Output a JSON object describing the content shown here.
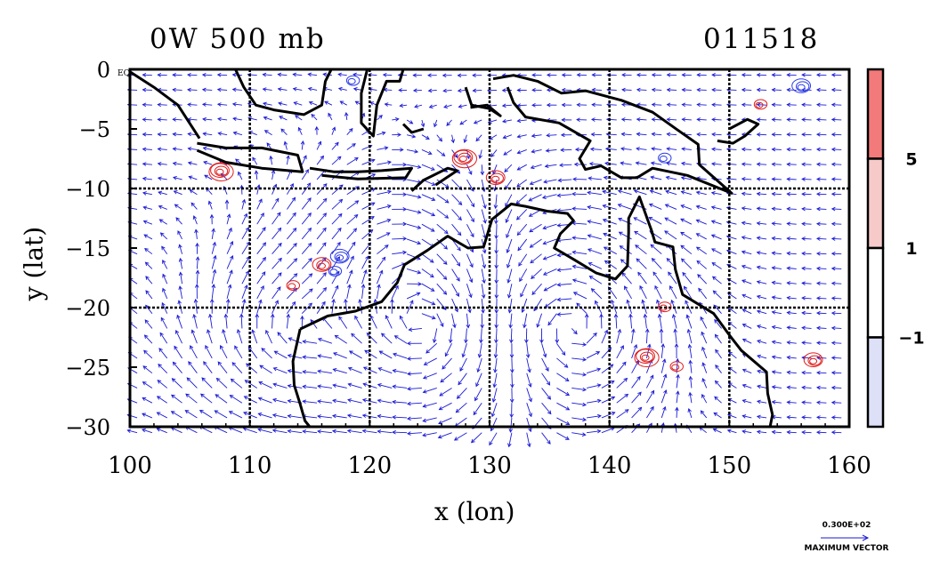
{
  "title_left": "0W 500 mb",
  "title_right": "011518",
  "eq_mark": "EQ",
  "x_axis": {
    "label": "x (lon)",
    "range": [
      100,
      160
    ],
    "ticks": [
      100,
      110,
      120,
      130,
      140,
      150,
      160
    ],
    "tick_labels": [
      "100",
      "110",
      "120",
      "130",
      "140",
      "150",
      "160"
    ]
  },
  "y_axis": {
    "label": "y (lat)",
    "range": [
      -30,
      0
    ],
    "ticks": [
      0,
      -5,
      -10,
      -15,
      -20,
      -25,
      -30
    ],
    "tick_labels": [
      "0",
      "−5",
      "−10",
      "−15",
      "−20",
      "−25",
      "−30"
    ]
  },
  "grid": {
    "on": true,
    "lon_lines": [
      110,
      120,
      130,
      140,
      150
    ],
    "lat_lines": [
      -10,
      -20
    ],
    "style": "dashed"
  },
  "colorbar": {
    "labels": [
      "5",
      "1",
      "−1"
    ],
    "label_values": [
      5,
      1,
      -1
    ],
    "bands": [
      {
        "from": 5,
        "to": 10,
        "color": "#f27a7a"
      },
      {
        "from": 1,
        "to": 5,
        "color": "#f7caca"
      },
      {
        "from": -1,
        "to": 1,
        "color": "#ffffff"
      },
      {
        "from": -10,
        "to": -1,
        "color": "#dde0f7"
      }
    ]
  },
  "vector_key": {
    "magnitude": "0.300E+02",
    "caption": "MAXIMUM VECTOR"
  },
  "colors": {
    "vectors": "#1a1ad6",
    "positive_contours": "#e01b1b",
    "negative_contours": "#2a3ae8",
    "coast": "#000000"
  },
  "chart_data": {
    "type": "vector-field-map",
    "positive_centers": [
      {
        "lon": 113.5,
        "lat": -18.2
      },
      {
        "lon": 116.0,
        "lat": -16.5
      },
      {
        "lon": 143.0,
        "lat": -24.2
      },
      {
        "lon": 145.5,
        "lat": -25.0
      },
      {
        "lon": 130.5,
        "lat": -9.2
      },
      {
        "lon": 107.5,
        "lat": -8.6
      },
      {
        "lon": 152.5,
        "lat": -3.0
      },
      {
        "lon": 157.0,
        "lat": -24.5
      },
      {
        "lon": 127.8,
        "lat": -7.5
      },
      {
        "lon": 144.5,
        "lat": -20.0
      }
    ],
    "negative_centers": [
      {
        "lon": 117.0,
        "lat": -17.0
      },
      {
        "lon": 117.5,
        "lat": -15.8
      },
      {
        "lon": 144.5,
        "lat": -7.5
      },
      {
        "lon": 156.0,
        "lat": -1.5
      },
      {
        "lon": 118.5,
        "lat": -1.0
      }
    ]
  }
}
